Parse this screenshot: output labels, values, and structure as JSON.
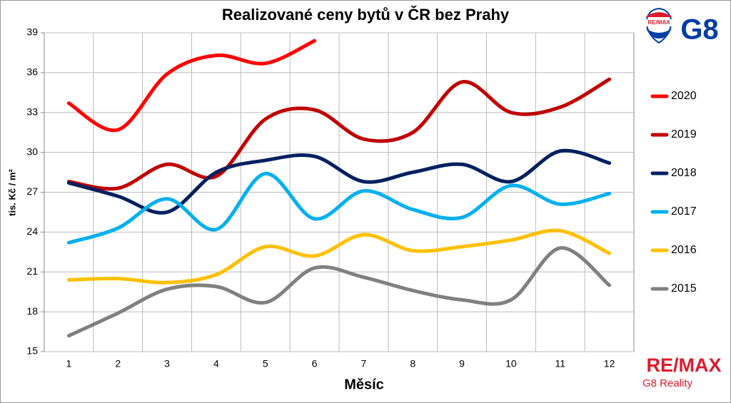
{
  "chart_data": {
    "type": "line",
    "title": "Realizované ceny bytů v ČR bez Prahy",
    "x_label": "Měsíc",
    "y_label": "tis. Kč / m²",
    "categories": [
      "1",
      "2",
      "3",
      "4",
      "5",
      "6",
      "7",
      "8",
      "9",
      "10",
      "11",
      "12"
    ],
    "series": [
      {
        "name": "2020",
        "color": "#ff0000",
        "values": [
          33.7,
          31.7,
          35.9,
          37.3,
          36.7,
          38.4,
          null,
          null,
          null,
          null,
          null,
          null
        ]
      },
      {
        "name": "2019",
        "color": "#c00000",
        "values": [
          27.8,
          27.3,
          29.1,
          28.2,
          32.5,
          33.2,
          31.0,
          31.5,
          35.3,
          33.0,
          33.4,
          35.5
        ]
      },
      {
        "name": "2018",
        "color": "#002060",
        "values": [
          27.7,
          26.7,
          25.5,
          28.5,
          29.4,
          29.7,
          27.8,
          28.5,
          29.1,
          27.8,
          30.1,
          29.2
        ]
      },
      {
        "name": "2017",
        "color": "#00b0f0",
        "values": [
          23.2,
          24.3,
          26.5,
          24.2,
          28.4,
          25.0,
          27.1,
          25.7,
          25.1,
          27.5,
          26.1,
          26.9
        ]
      },
      {
        "name": "2016",
        "color": "#ffc000",
        "values": [
          20.4,
          20.5,
          20.2,
          20.8,
          22.9,
          22.2,
          23.8,
          22.6,
          22.9,
          23.4,
          24.1,
          22.4
        ]
      },
      {
        "name": "2015",
        "color": "#808080",
        "values": [
          16.2,
          17.9,
          19.7,
          19.9,
          18.7,
          21.3,
          20.6,
          19.6,
          18.9,
          18.9,
          22.8,
          20.0
        ]
      }
    ],
    "ylim": [
      15,
      39
    ],
    "yticks": [
      15,
      18,
      21,
      24,
      27,
      30,
      33,
      36,
      39
    ],
    "grid": true,
    "legend": "right"
  },
  "logo_top": {
    "brand": "RE/MAX",
    "name": "G8"
  },
  "logo_bottom": {
    "brand": "RE/MAX",
    "name": "G8 Reality"
  }
}
